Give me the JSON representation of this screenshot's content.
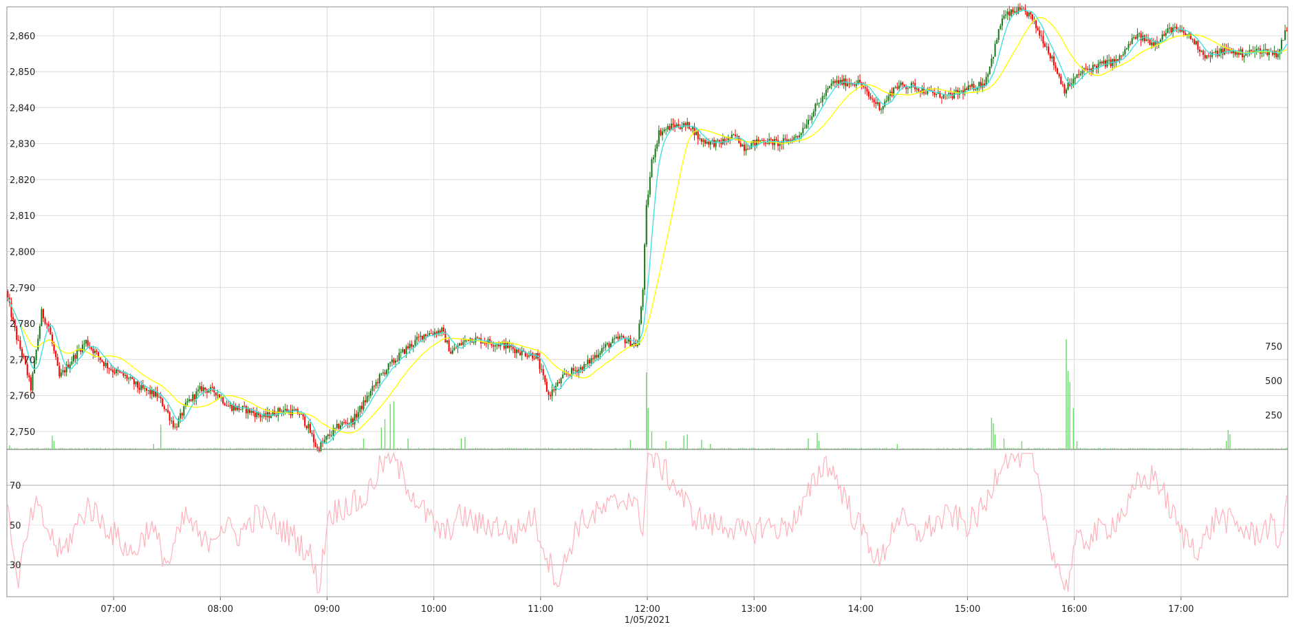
{
  "chart_data": {
    "type": "candlestick",
    "x_axis": {
      "tick_labels": [
        "07:00",
        "08:00",
        "09:00",
        "10:00",
        "11:00",
        "12:00",
        "13:00",
        "14:00",
        "15:00",
        "16:00",
        "17:00"
      ],
      "date_label": "1/05/2021",
      "range": [
        "06:00",
        "17:59"
      ]
    },
    "price_panel": {
      "y_tick_labels": [
        "2,750",
        "2,760",
        "2,770",
        "2,780",
        "2,790",
        "2,800",
        "2,810",
        "2,820",
        "2,830",
        "2,840",
        "2,850",
        "2,860"
      ],
      "ylim": [
        2745,
        2868
      ],
      "grid": true,
      "up_color": "#1a7a1a",
      "down_color": "#ff0000",
      "ma_fast_color": "#40e0e0",
      "ma_slow_color": "#ffff00",
      "price_anchors": [
        [
          "06:00",
          2789
        ],
        [
          "06:06",
          2776
        ],
        [
          "06:10",
          2770
        ],
        [
          "06:14",
          2762
        ],
        [
          "06:20",
          2783
        ],
        [
          "06:24",
          2779
        ],
        [
          "06:30",
          2765
        ],
        [
          "06:40",
          2772
        ],
        [
          "06:45",
          2775
        ],
        [
          "06:55",
          2769
        ],
        [
          "07:00",
          2767
        ],
        [
          "07:08",
          2765
        ],
        [
          "07:15",
          2762
        ],
        [
          "07:25",
          2760
        ],
        [
          "07:30",
          2756
        ],
        [
          "07:35",
          2751
        ],
        [
          "07:42",
          2758
        ],
        [
          "07:50",
          2762
        ],
        [
          "07:58",
          2761
        ],
        [
          "08:05",
          2757
        ],
        [
          "08:15",
          2756
        ],
        [
          "08:25",
          2754
        ],
        [
          "08:35",
          2756
        ],
        [
          "08:45",
          2755
        ],
        [
          "08:50",
          2751
        ],
        [
          "08:55",
          2745
        ],
        [
          "09:00",
          2748
        ],
        [
          "09:08",
          2752
        ],
        [
          "09:15",
          2753
        ],
        [
          "09:20",
          2757
        ],
        [
          "09:30",
          2765
        ],
        [
          "09:35",
          2768
        ],
        [
          "09:45",
          2773
        ],
        [
          "09:55",
          2777
        ],
        [
          "10:05",
          2778
        ],
        [
          "10:10",
          2772
        ],
        [
          "10:20",
          2776
        ],
        [
          "10:30",
          2775
        ],
        [
          "10:40",
          2774
        ],
        [
          "10:50",
          2772
        ],
        [
          "10:58",
          2771
        ],
        [
          "11:05",
          2760
        ],
        [
          "11:15",
          2766
        ],
        [
          "11:25",
          2768
        ],
        [
          "11:35",
          2773
        ],
        [
          "11:45",
          2776
        ],
        [
          "11:50",
          2775
        ],
        [
          "11:55",
          2774
        ],
        [
          "11:58",
          2790
        ],
        [
          "12:00",
          2812
        ],
        [
          "12:03",
          2825
        ],
        [
          "12:07",
          2833
        ],
        [
          "12:15",
          2835
        ],
        [
          "12:25",
          2835
        ],
        [
          "12:30",
          2831
        ],
        [
          "12:40",
          2830
        ],
        [
          "12:50",
          2832
        ],
        [
          "12:55",
          2829
        ],
        [
          "13:05",
          2831
        ],
        [
          "13:15",
          2830
        ],
        [
          "13:25",
          2832
        ],
        [
          "13:35",
          2840
        ],
        [
          "13:45",
          2847
        ],
        [
          "14:00",
          2847
        ],
        [
          "14:05",
          2843
        ],
        [
          "14:12",
          2840
        ],
        [
          "14:20",
          2846
        ],
        [
          "14:30",
          2846
        ],
        [
          "14:40",
          2844
        ],
        [
          "14:50",
          2843
        ],
        [
          "15:00",
          2845
        ],
        [
          "15:10",
          2847
        ],
        [
          "15:15",
          2855
        ],
        [
          "15:20",
          2865
        ],
        [
          "15:28",
          2867
        ],
        [
          "15:35",
          2866
        ],
        [
          "15:45",
          2857
        ],
        [
          "15:55",
          2845
        ],
        [
          "16:05",
          2850
        ],
        [
          "16:15",
          2852
        ],
        [
          "16:25",
          2853
        ],
        [
          "16:35",
          2860
        ],
        [
          "16:45",
          2858
        ],
        [
          "16:55",
          2862
        ],
        [
          "17:05",
          2860
        ],
        [
          "17:15",
          2854
        ],
        [
          "17:25",
          2856
        ],
        [
          "17:35",
          2855
        ],
        [
          "17:45",
          2856
        ],
        [
          "17:55",
          2855
        ],
        [
          "17:59",
          2861
        ]
      ]
    },
    "volume_panel": {
      "y_tick_labels": [
        "250",
        "500",
        "750"
      ],
      "ylim": [
        0,
        800
      ],
      "color": "#66dd66",
      "spikes": [
        [
          "06:01",
          30
        ],
        [
          "06:25",
          100
        ],
        [
          "06:26",
          60
        ],
        [
          "07:22",
          40
        ],
        [
          "07:26",
          180
        ],
        [
          "09:20",
          80
        ],
        [
          "09:30",
          160
        ],
        [
          "09:32",
          220
        ],
        [
          "09:35",
          330
        ],
        [
          "09:37",
          350
        ],
        [
          "09:45",
          80
        ],
        [
          "10:15",
          80
        ],
        [
          "10:17",
          90
        ],
        [
          "11:50",
          70
        ],
        [
          "11:59",
          560
        ],
        [
          "12:00",
          300
        ],
        [
          "12:02",
          130
        ],
        [
          "12:10",
          60
        ],
        [
          "12:20",
          100
        ],
        [
          "12:22",
          110
        ],
        [
          "12:30",
          70
        ],
        [
          "12:35",
          40
        ],
        [
          "13:30",
          80
        ],
        [
          "13:35",
          120
        ],
        [
          "13:36",
          60
        ],
        [
          "14:20",
          40
        ],
        [
          "15:13",
          230
        ],
        [
          "15:14",
          190
        ],
        [
          "15:15",
          110
        ],
        [
          "15:20",
          80
        ],
        [
          "15:30",
          60
        ],
        [
          "15:55",
          800
        ],
        [
          "15:56",
          570
        ],
        [
          "15:57",
          490
        ],
        [
          "15:59",
          300
        ],
        [
          "16:01",
          60
        ],
        [
          "17:25",
          60
        ],
        [
          "17:26",
          140
        ],
        [
          "17:27",
          110
        ]
      ]
    },
    "rsi_panel": {
      "y_tick_labels": [
        "30",
        "50",
        "70"
      ],
      "ylim": [
        14,
        88
      ],
      "upper_line": 70,
      "lower_line": 30,
      "color": "#ffb0b8",
      "rsi_anchors": [
        [
          "06:00",
          65
        ],
        [
          "06:05",
          20
        ],
        [
          "06:15",
          60
        ],
        [
          "06:30",
          35
        ],
        [
          "06:45",
          60
        ],
        [
          "07:00",
          45
        ],
        [
          "07:10",
          35
        ],
        [
          "07:20",
          50
        ],
        [
          "07:30",
          30
        ],
        [
          "07:40",
          55
        ],
        [
          "07:50",
          40
        ],
        [
          "08:00",
          50
        ],
        [
          "08:10",
          45
        ],
        [
          "08:20",
          55
        ],
        [
          "08:30",
          50
        ],
        [
          "08:40",
          45
        ],
        [
          "08:50",
          35
        ],
        [
          "08:55",
          18
        ],
        [
          "09:00",
          55
        ],
        [
          "09:10",
          60
        ],
        [
          "09:20",
          62
        ],
        [
          "09:30",
          80
        ],
        [
          "09:35",
          85
        ],
        [
          "09:45",
          70
        ],
        [
          "09:55",
          55
        ],
        [
          "10:05",
          45
        ],
        [
          "10:15",
          55
        ],
        [
          "10:25",
          50
        ],
        [
          "10:35",
          50
        ],
        [
          "10:45",
          45
        ],
        [
          "10:55",
          55
        ],
        [
          "11:05",
          30
        ],
        [
          "11:10",
          22
        ],
        [
          "11:20",
          50
        ],
        [
          "11:30",
          55
        ],
        [
          "11:40",
          60
        ],
        [
          "11:50",
          65
        ],
        [
          "11:57",
          50
        ],
        [
          "12:00",
          85
        ],
        [
          "12:05",
          82
        ],
        [
          "12:15",
          70
        ],
        [
          "12:25",
          55
        ],
        [
          "12:35",
          50
        ],
        [
          "12:45",
          50
        ],
        [
          "12:55",
          45
        ],
        [
          "13:05",
          50
        ],
        [
          "13:15",
          48
        ],
        [
          "13:25",
          55
        ],
        [
          "13:35",
          75
        ],
        [
          "13:40",
          82
        ],
        [
          "13:45",
          75
        ],
        [
          "13:55",
          55
        ],
        [
          "14:05",
          40
        ],
        [
          "14:10",
          30
        ],
        [
          "14:20",
          55
        ],
        [
          "14:30",
          45
        ],
        [
          "14:40",
          50
        ],
        [
          "14:50",
          55
        ],
        [
          "15:00",
          50
        ],
        [
          "15:10",
          60
        ],
        [
          "15:15",
          75
        ],
        [
          "15:20",
          85
        ],
        [
          "15:30",
          85
        ],
        [
          "15:35",
          85
        ],
        [
          "15:45",
          45
        ],
        [
          "15:50",
          30
        ],
        [
          "15:55",
          18
        ],
        [
          "16:00",
          40
        ],
        [
          "16:10",
          45
        ],
        [
          "16:20",
          50
        ],
        [
          "16:30",
          60
        ],
        [
          "16:35",
          70
        ],
        [
          "16:45",
          75
        ],
        [
          "16:55",
          55
        ],
        [
          "17:00",
          45
        ],
        [
          "17:10",
          38
        ],
        [
          "17:20",
          55
        ],
        [
          "17:30",
          50
        ],
        [
          "17:40",
          45
        ],
        [
          "17:50",
          50
        ],
        [
          "17:55",
          40
        ],
        [
          "17:59",
          65
        ]
      ]
    }
  }
}
